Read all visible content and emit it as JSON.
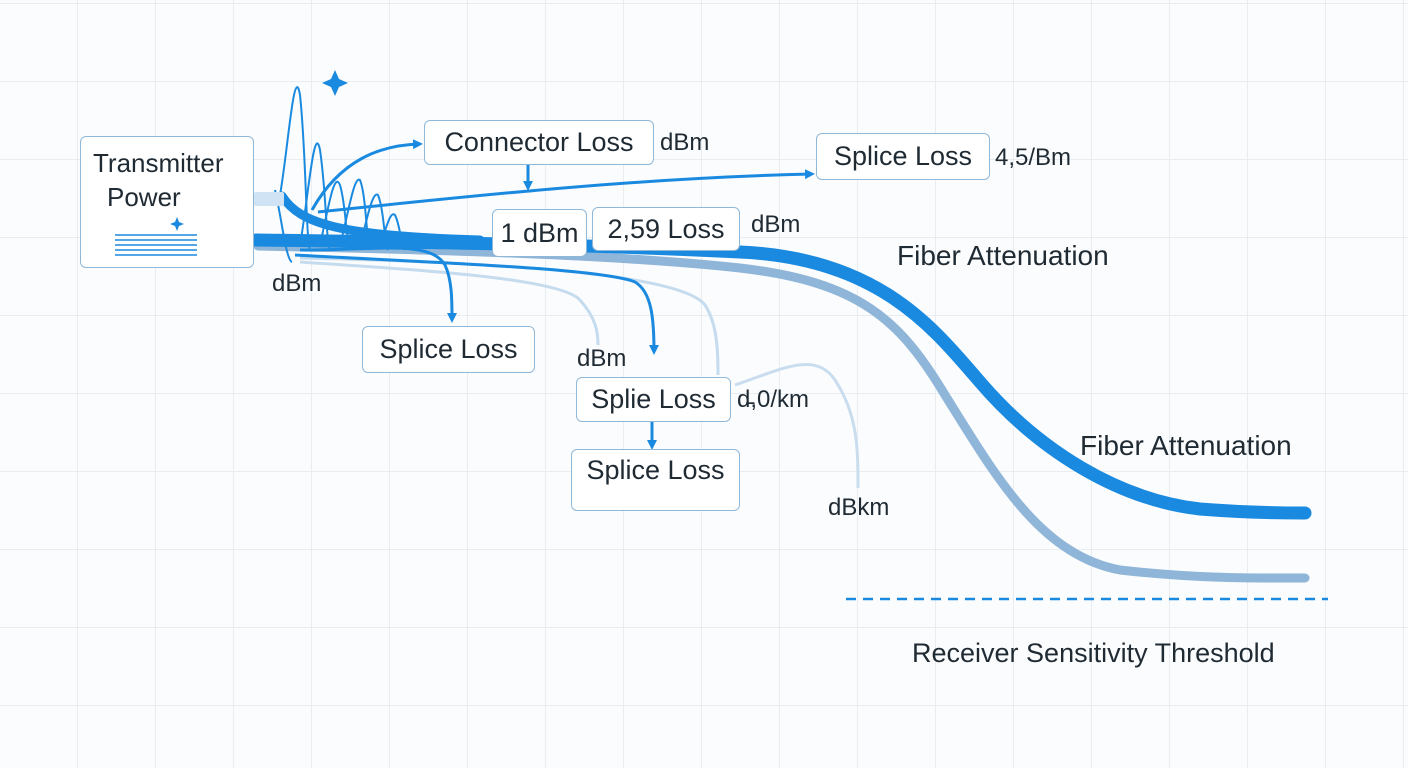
{
  "transmitter": {
    "line1": "Transmitter",
    "line2": "Power"
  },
  "boxes": {
    "connector_loss": "Connector Loss",
    "splice_loss_top": "Splice Loss",
    "one_dbm": "1 dBm",
    "loss_259": "2,59 Loss",
    "splice_loss_left": "Splice Loss",
    "splie_loss": "Splie Loss",
    "splice_loss_bottom": "Splice Loss"
  },
  "labels": {
    "dbm_connector": "dBm",
    "splice_top_value": "4,5/Bm",
    "dbm_loss259": "dBm",
    "dbm_tx": "dBm",
    "dbm_mid": "dBm",
    "splie_value": "d̵,0/km",
    "dbkm": "dBkm",
    "fiber_attenuation_1": "Fiber Attenuation",
    "fiber_attenuation_2": "Fiber Attenuation",
    "receiver_threshold": "Receiver Sensitivity Threshold"
  },
  "colors": {
    "primary_blue": "#1a8ae0",
    "secondary_blue": "#8fb5d8",
    "light_blue": "#c2d8ec",
    "box_border": "#8fb8d8"
  }
}
